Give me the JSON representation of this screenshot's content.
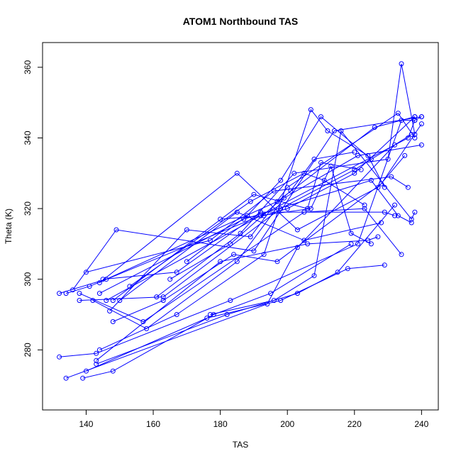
{
  "chart_data": {
    "type": "line",
    "title": "ATOM1 Northbound TAS",
    "xlabel": "TAS",
    "ylabel": "Theta (K)",
    "xlim": [
      127,
      245
    ],
    "ylim": [
      263,
      367
    ],
    "x_ticks": [
      140,
      160,
      180,
      200,
      220,
      240
    ],
    "y_ticks": [
      280,
      300,
      320,
      340,
      360
    ],
    "grid": false,
    "legend": "none",
    "colors": {
      "series": "#0000ff",
      "axis": "#000000"
    },
    "series": [
      {
        "x": [
          132,
          143,
          183,
          221,
          234,
          238
        ],
        "y": [
          278,
          279,
          294,
          310,
          345,
          345
        ]
      },
      {
        "x": [
          134,
          194,
          203,
          232
        ],
        "y": [
          272,
          293,
          309,
          338
        ]
      },
      {
        "x": [
          132,
          146,
          197,
          226,
          238
        ],
        "y": [
          296,
          300,
          322,
          343,
          346
        ]
      },
      {
        "x": [
          134,
          141,
          192,
          236,
          238,
          240
        ],
        "y": [
          296,
          298,
          318,
          340,
          345,
          346
        ]
      },
      {
        "x": [
          136,
          149,
          190,
          214,
          240
        ],
        "y": [
          297,
          314,
          308,
          342,
          346
        ]
      },
      {
        "x": [
          138,
          163,
          198,
          220,
          237
        ],
        "y": [
          294,
          295,
          320,
          331,
          341
        ]
      },
      {
        "x": [
          138,
          157,
          205,
          223,
          234
        ],
        "y": [
          296,
          288,
          319,
          320,
          307
        ]
      },
      {
        "x": [
          140,
          177,
          196,
          231,
          236
        ],
        "y": [
          302,
          311,
          325,
          329,
          326
        ]
      },
      {
        "x": [
          142,
          158,
          185,
          199,
          221,
          240
        ],
        "y": [
          294,
          286,
          305,
          323,
          335,
          338
        ]
      },
      {
        "x": [
          144,
          187,
          225,
          233,
          237
        ],
        "y": [
          296,
          317,
          328,
          318,
          316
        ]
      },
      {
        "x": [
          144,
          185,
          203,
          227,
          235
        ],
        "y": [
          299,
          330,
          314,
          326,
          335
        ]
      },
      {
        "x": [
          145,
          167,
          192,
          229,
          232
        ],
        "y": [
          300,
          302,
          319,
          319,
          318
        ]
      },
      {
        "x": [
          147,
          170,
          189,
          200,
          233,
          238
        ],
        "y": [
          291,
          314,
          312,
          326,
          347,
          340
        ]
      },
      {
        "x": [
          148,
          163,
          184,
          197,
          228,
          240
        ],
        "y": [
          288,
          294,
          307,
          305,
          327,
          344
        ]
      },
      {
        "x": [
          148,
          190,
          206,
          210,
          222
        ],
        "y": [
          294,
          324,
          320,
          333,
          331
        ]
      },
      {
        "x": [
          150,
          185,
          205,
          228
        ],
        "y": [
          294,
          319,
          311,
          316
        ]
      },
      {
        "x": [
          161,
          186,
          202,
          230,
          234,
          238
        ],
        "y": [
          295,
          313,
          330,
          334,
          361,
          341
        ]
      },
      {
        "x": [
          177,
          196,
          208,
          216,
          237,
          238
        ],
        "y": [
          290,
          294,
          301,
          342,
          317,
          319
        ]
      },
      {
        "x": [
          139,
          148,
          178,
          195,
          219
        ],
        "y": [
          272,
          274,
          290,
          296,
          310
        ]
      },
      {
        "x": [
          140,
          176,
          198,
          218,
          229
        ],
        "y": [
          274,
          289,
          294,
          303,
          304
        ]
      },
      {
        "x": [
          143,
          182,
          203,
          215,
          232
        ],
        "y": [
          276,
          290,
          296,
          302,
          321
        ]
      },
      {
        "x": [
          143,
          180,
          206,
          224,
          227
        ],
        "y": [
          277,
          305,
          310,
          311,
          312
        ]
      },
      {
        "x": [
          144,
          167,
          193,
          207,
          212,
          224,
          229
        ],
        "y": [
          280,
          290,
          307,
          348,
          342,
          335,
          326
        ]
      },
      {
        "x": [
          146,
          192,
          207,
          213,
          219,
          225
        ],
        "y": [
          294,
          318,
          320,
          332,
          313,
          310
        ]
      },
      {
        "x": [
          153,
          189,
          205,
          211,
          223
        ],
        "y": [
          298,
          322,
          330,
          328,
          321
        ]
      },
      {
        "x": [
          165,
          183,
          201,
          208,
          220
        ],
        "y": [
          300,
          310,
          325,
          334,
          336
        ]
      },
      {
        "x": [
          170,
          188,
          198,
          210,
          225
        ],
        "y": [
          305,
          318,
          328,
          346,
          334
        ]
      },
      {
        "x": [
          180,
          193,
          200,
          220,
          238
        ],
        "y": [
          317,
          318,
          320,
          330,
          346
        ]
      }
    ]
  }
}
